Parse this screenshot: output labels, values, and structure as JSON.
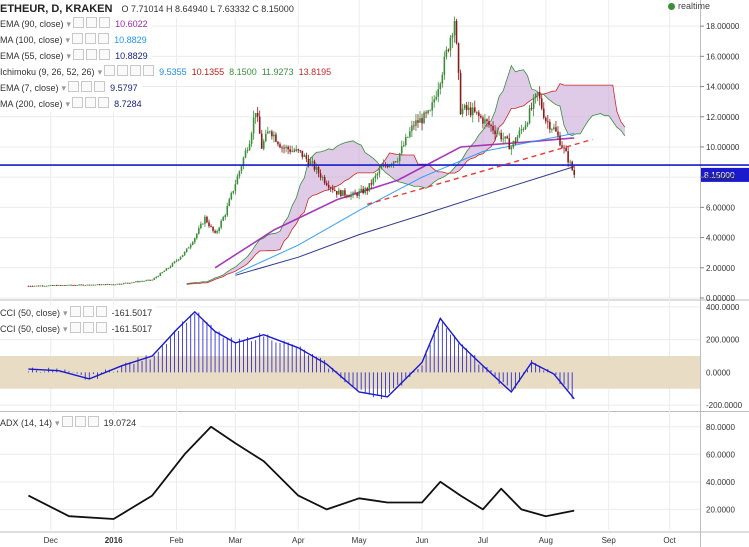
{
  "header": {
    "symbol": "ETHEUR, D, KRAKEN",
    "ohlc": "O 7.71014 H 8.64940 L 7.63332 C 8.15000",
    "realtime_label": "realtime"
  },
  "indicators": [
    {
      "label": "EMA (90, close)",
      "value": "10.6022",
      "color": "#9c27b0"
    },
    {
      "label": "MA (100, close)",
      "value": "10.8829",
      "color": "#2196f3"
    },
    {
      "label": "EMA (55, close)",
      "value": "10.8829",
      "color": "#1a237e"
    },
    {
      "label": "Ichimoku (9, 26, 52, 26)",
      "values": [
        "9.5355",
        "10.1355",
        "8.1500",
        "11.9273",
        "13.8195"
      ],
      "colors": [
        "#1e88e5",
        "#b71c1c",
        "#388e3c",
        "#388e3c",
        "#c62828"
      ]
    },
    {
      "label": "EMA (7, close)",
      "value": "9.5797",
      "color": "#1a237e"
    },
    {
      "label": "MA (200, close)",
      "value": "8.7284",
      "color": "#1a237e"
    }
  ],
  "cci_legend": [
    {
      "label": "CCI (50, close)",
      "value": "-161.5017"
    },
    {
      "label": "CCI (50, close)",
      "value": "-161.5017"
    }
  ],
  "adx_legend": {
    "label": "ADX (14, 14)",
    "value": "19.0724"
  },
  "price_badge": "8.15000",
  "colors": {
    "up": "#3a8e3a",
    "down": "#8b1a1a",
    "hline": "#1a1acc",
    "trend": "#e53935",
    "cci": "#1a1acc",
    "cci_band": "#e8dcc4"
  },
  "chart_data": [
    {
      "type": "candlestick",
      "title": "ETHEUR, D, KRAKEN",
      "x_ticks": [
        "Dec",
        "2016",
        "Feb",
        "Mar",
        "Apr",
        "May",
        "Jun",
        "Jul",
        "Aug",
        "Sep",
        "Oct"
      ],
      "y_ticks": [
        "0.00000",
        "2.00000",
        "4.00000",
        "6.00000",
        "8.00000",
        "10.00000",
        "12.00000",
        "14.00000",
        "16.00000",
        "18.00000"
      ],
      "ylim": [
        0,
        19.2
      ],
      "horizontal_line": 8.8,
      "last_close": 8.15,
      "trendline": [
        {
          "x": "2016-05-05",
          "y": 6.2
        },
        {
          "x": "2016-08-24",
          "y": 10.5
        }
      ],
      "price_path": [
        [
          "2015-11-20",
          0.8
        ],
        [
          "2015-12-10",
          0.85
        ],
        [
          "2016-01-01",
          0.9
        ],
        [
          "2016-01-20",
          1.2
        ],
        [
          "2016-01-28",
          2.0
        ],
        [
          "2016-02-05",
          3.0
        ],
        [
          "2016-02-10",
          4.0
        ],
        [
          "2016-02-15",
          5.3
        ],
        [
          "2016-02-20",
          4.2
        ],
        [
          "2016-02-25",
          5.6
        ],
        [
          "2016-03-02",
          8.0
        ],
        [
          "2016-03-08",
          10.5
        ],
        [
          "2016-03-11",
          12.5
        ],
        [
          "2016-03-14",
          10.0
        ],
        [
          "2016-03-18",
          11.2
        ],
        [
          "2016-03-24",
          10.0
        ],
        [
          "2016-04-02",
          9.6
        ],
        [
          "2016-04-08",
          8.8
        ],
        [
          "2016-04-14",
          7.8
        ],
        [
          "2016-04-20",
          7.0
        ],
        [
          "2016-04-28",
          6.8
        ],
        [
          "2016-05-05",
          7.2
        ],
        [
          "2016-05-12",
          8.6
        ],
        [
          "2016-05-20",
          9.3
        ],
        [
          "2016-05-28",
          11.5
        ],
        [
          "2016-06-05",
          12.2
        ],
        [
          "2016-06-12",
          15.6
        ],
        [
          "2016-06-17",
          18.5
        ],
        [
          "2016-06-20",
          12.5
        ],
        [
          "2016-06-25",
          12.4
        ],
        [
          "2016-07-01",
          11.8
        ],
        [
          "2016-07-08",
          11.0
        ],
        [
          "2016-07-15",
          10.0
        ],
        [
          "2016-07-22",
          11.6
        ],
        [
          "2016-07-28",
          13.5
        ],
        [
          "2016-08-01",
          11.8
        ],
        [
          "2016-08-05",
          11.2
        ],
        [
          "2016-08-08",
          10.4
        ],
        [
          "2016-08-12",
          9.2
        ],
        [
          "2016-08-15",
          8.15
        ]
      ],
      "series": [
        {
          "name": "EMA (90, close)",
          "color": "#9c27b0",
          "points": [
            [
              "2016-02-20",
              2.0
            ],
            [
              "2016-03-20",
              4.5
            ],
            [
              "2016-04-20",
              6.5
            ],
            [
              "2016-05-20",
              7.8
            ],
            [
              "2016-06-20",
              10.0
            ],
            [
              "2016-07-20",
              10.3
            ],
            [
              "2016-08-15",
              10.6
            ]
          ]
        },
        {
          "name": "MA (100, close)",
          "color": "#2196f3",
          "points": [
            [
              "2016-03-01",
              1.6
            ],
            [
              "2016-04-01",
              3.5
            ],
            [
              "2016-05-01",
              5.8
            ],
            [
              "2016-06-01",
              8.0
            ],
            [
              "2016-07-01",
              9.7
            ],
            [
              "2016-08-15",
              10.9
            ]
          ]
        },
        {
          "name": "MA (200, close)",
          "color": "#1a237e",
          "points": [
            [
              "2016-03-01",
              1.5
            ],
            [
              "2016-04-01",
              2.7
            ],
            [
              "2016-05-01",
              4.2
            ],
            [
              "2016-06-01",
              5.5
            ],
            [
              "2016-07-01",
              6.8
            ],
            [
              "2016-08-15",
              8.7
            ]
          ]
        }
      ]
    },
    {
      "type": "line",
      "title": "CCI (50, close)",
      "y_ticks": [
        "400.0000",
        "200.0000",
        "0.0000",
        "-200.0000"
      ],
      "ylim": [
        -230,
        430
      ],
      "band": [
        -100,
        100
      ],
      "points": [
        [
          "2015-11-20",
          20
        ],
        [
          "2015-12-05",
          10
        ],
        [
          "2015-12-20",
          -40
        ],
        [
          "2016-01-05",
          40
        ],
        [
          "2016-01-20",
          100
        ],
        [
          "2016-02-01",
          260
        ],
        [
          "2016-02-10",
          370
        ],
        [
          "2016-02-20",
          250
        ],
        [
          "2016-03-01",
          180
        ],
        [
          "2016-03-15",
          230
        ],
        [
          "2016-04-01",
          150
        ],
        [
          "2016-04-15",
          50
        ],
        [
          "2016-05-01",
          -120
        ],
        [
          "2016-05-15",
          -150
        ],
        [
          "2016-06-01",
          60
        ],
        [
          "2016-06-10",
          330
        ],
        [
          "2016-06-20",
          170
        ],
        [
          "2016-07-01",
          40
        ],
        [
          "2016-07-15",
          -120
        ],
        [
          "2016-07-25",
          60
        ],
        [
          "2016-08-05",
          -10
        ],
        [
          "2016-08-15",
          -161.5017
        ]
      ]
    },
    {
      "type": "line",
      "title": "ADX (14, 14)",
      "y_ticks": [
        "80.0000",
        "60.0000",
        "40.0000",
        "20.0000"
      ],
      "ylim": [
        5,
        90
      ],
      "points": [
        [
          "2015-11-20",
          30
        ],
        [
          "2015-12-10",
          15
        ],
        [
          "2016-01-01",
          13
        ],
        [
          "2016-01-20",
          30
        ],
        [
          "2016-02-05",
          60
        ],
        [
          "2016-02-18",
          80
        ],
        [
          "2016-03-01",
          68
        ],
        [
          "2016-03-15",
          55
        ],
        [
          "2016-04-01",
          30
        ],
        [
          "2016-04-15",
          20
        ],
        [
          "2016-05-01",
          28
        ],
        [
          "2016-05-15",
          25
        ],
        [
          "2016-06-01",
          25
        ],
        [
          "2016-06-10",
          40
        ],
        [
          "2016-06-20",
          30
        ],
        [
          "2016-07-01",
          20
        ],
        [
          "2016-07-10",
          35
        ],
        [
          "2016-07-20",
          20
        ],
        [
          "2016-08-01",
          15
        ],
        [
          "2016-08-15",
          19.0724
        ]
      ]
    }
  ]
}
